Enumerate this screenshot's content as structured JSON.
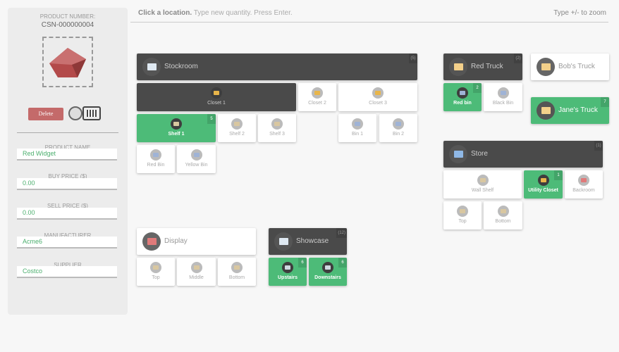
{
  "product": {
    "number_label": "PRODUCT NUMBER:",
    "number": "CSN-000000004",
    "delete_label": "Delete",
    "fields": [
      {
        "label": "PRODUCT NAME",
        "value": "Red Widget"
      },
      {
        "label": "BUY PRICE ($)",
        "value": "0.00"
      },
      {
        "label": "SELL PRICE ($)",
        "value": "0.00"
      },
      {
        "label": "MANUFACTURER",
        "value": "Acme6"
      },
      {
        "label": "SUPPLIER",
        "value": "Costco"
      }
    ]
  },
  "instructions": {
    "bold": "Click a location.",
    "rest": "Type new quantity. Press Enter."
  },
  "zoom_hint": "Type +/- to zoom",
  "colors": {
    "green": "#4dbb78",
    "dark": "#4a4a4a",
    "delete": "#c46a6a",
    "product": "#b34a4a"
  },
  "locations": {
    "stockroom": {
      "label": "Stockroom",
      "count": "(5)",
      "icon": "warehouse-icon"
    },
    "closet1": {
      "label": "Closet 1",
      "icon": "door-icon"
    },
    "closet2": {
      "label": "Closet 2",
      "icon": "door-icon"
    },
    "closet3": {
      "label": "Closet 3",
      "icon": "door-icon"
    },
    "shelf1": {
      "label": "Shelf 1",
      "count": "5",
      "icon": "shelf-icon"
    },
    "shelf2": {
      "label": "Shelf 2",
      "icon": "shelf-icon"
    },
    "shelf3": {
      "label": "Shelf 3",
      "icon": "shelf-icon"
    },
    "bin1": {
      "label": "Bin 1",
      "icon": "bin-icon"
    },
    "bin2": {
      "label": "Bin 2",
      "icon": "bin-icon"
    },
    "redbin": {
      "label": "Red Bin",
      "icon": "bin-icon"
    },
    "yellowbin": {
      "label": "Yellow Bin",
      "icon": "bin-icon"
    },
    "redtruck": {
      "label": "Red Truck",
      "count": "(2)",
      "icon": "truck-icon"
    },
    "redtruckbin": {
      "label": "Red bin",
      "count": "2",
      "icon": "bin-icon"
    },
    "blackbin": {
      "label": "Black Bin",
      "icon": "bin-icon"
    },
    "bobstruck": {
      "label": "Bob's Truck",
      "icon": "truck-icon"
    },
    "janestruck": {
      "label": "Jane's Truck",
      "count": "7",
      "icon": "truck-icon"
    },
    "store": {
      "label": "Store",
      "count": "(1)",
      "icon": "store-icon"
    },
    "wallshelf": {
      "label": "Wall Shelf",
      "icon": "shelf-icon"
    },
    "utilitycloset": {
      "label": "Utility Closet",
      "count": "1",
      "icon": "door-icon"
    },
    "backroom": {
      "label": "Backroom",
      "icon": "table-icon"
    },
    "storetop": {
      "label": "Top",
      "icon": "shelf-icon"
    },
    "storebottom": {
      "label": "Bottom",
      "icon": "shelf-icon"
    },
    "display": {
      "label": "Display",
      "icon": "table-icon"
    },
    "displaytop": {
      "label": "Top",
      "icon": "shelf-icon"
    },
    "displaymiddle": {
      "label": "Middle",
      "icon": "shelf-icon"
    },
    "displaybottom": {
      "label": "Bottom",
      "icon": "shelf-icon"
    },
    "showcase": {
      "label": "Showcase",
      "count": "(12)",
      "icon": "warehouse-icon"
    },
    "upstairs": {
      "label": "Upstairs",
      "count": "6",
      "icon": "disc-icon"
    },
    "downstairs": {
      "label": "Downstairs",
      "count": "6",
      "icon": "disc-icon"
    }
  }
}
